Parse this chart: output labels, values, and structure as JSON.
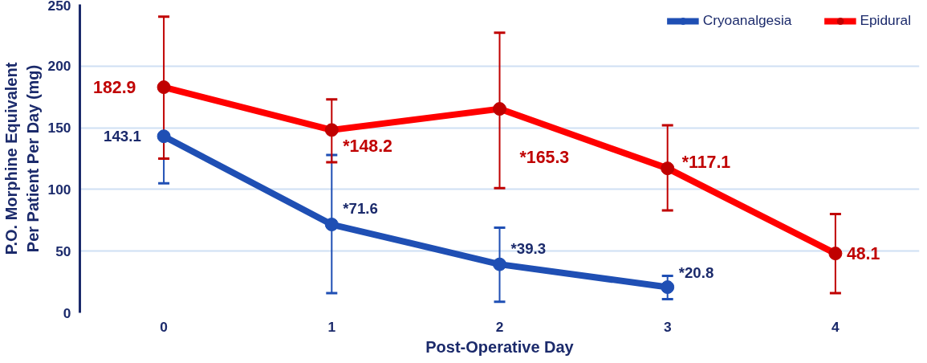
{
  "chart_data": {
    "type": "line",
    "xlabel": "Post-Operative Day",
    "ylabel": "P.O. Morphine Equivalent\nPer Patient Per Day (mg)",
    "categories": [
      "0",
      "1",
      "2",
      "3",
      "4"
    ],
    "ylim": [
      0,
      250
    ],
    "yticks": [
      0,
      50,
      100,
      150,
      200,
      250
    ],
    "grid": "y",
    "legend": "top right",
    "marker": "circle",
    "line_style": "solid",
    "series": [
      {
        "name": "Cryoanalgesia",
        "color": "#1f4fb4",
        "values": [
          143.1,
          71.6,
          39.3,
          20.8,
          null
        ],
        "errors": [
          [
            105,
            143.1
          ],
          [
            16,
            128
          ],
          [
            9,
            69
          ],
          [
            11,
            30
          ],
          null
        ],
        "value_labels": [
          "143.1",
          "*71.6",
          "*39.3",
          "*20.8",
          null
        ]
      },
      {
        "name": "Epidural",
        "color": "#ff0000",
        "values": [
          182.9,
          148.2,
          165.3,
          117.1,
          48.1
        ],
        "errors": [
          [
            125,
            240
          ],
          [
            122,
            173
          ],
          [
            101,
            227
          ],
          [
            83,
            152
          ],
          [
            16,
            80
          ]
        ],
        "value_labels": [
          "182.9",
          "*148.2",
          "*165.3",
          "*117.1",
          "48.1"
        ]
      }
    ]
  }
}
